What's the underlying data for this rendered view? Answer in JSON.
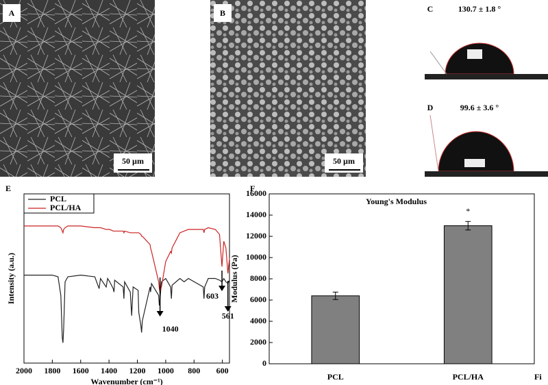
{
  "panels": [
    {
      "label": "A",
      "scale_bar": "50 µm"
    },
    {
      "label": "B",
      "scale_bar": "50 µm"
    },
    {
      "label": "C",
      "contact_angle": "130.7 ± 1.8 °"
    },
    {
      "label": "D",
      "contact_angle": "99.6 ± 3.6 °"
    }
  ],
  "chart_data": [
    {
      "type": "line",
      "panel": "E",
      "xlabel": "Wavenumber (cm⁻¹)",
      "ylabel": "Intensity (a.u.)",
      "x": [
        2000,
        1800,
        1760,
        1740,
        1730,
        1725,
        1720,
        1710,
        1690,
        1600,
        1500,
        1470,
        1460,
        1420,
        1410,
        1395,
        1370,
        1365,
        1360,
        1300,
        1295,
        1290,
        1250,
        1240,
        1230,
        1195,
        1190,
        1175,
        1170,
        1165,
        1110,
        1107,
        1100,
        1050,
        1045,
        1040,
        1030,
        1000,
        965,
        960,
        955,
        900,
        870,
        840,
        735,
        730,
        725,
        700,
        650,
        620,
        603,
        590,
        575,
        561,
        550
      ],
      "series": [
        {
          "name": "PCL",
          "color": "#222222",
          "values": [
            52,
            52,
            51,
            40,
            15,
            12,
            20,
            48,
            51,
            52,
            51,
            44,
            50,
            45,
            50,
            48,
            44,
            42,
            49,
            45,
            38,
            48,
            42,
            28,
            45,
            43,
            30,
            22,
            18,
            25,
            45,
            42,
            47,
            40,
            34,
            38,
            48,
            50,
            45,
            38,
            46,
            50,
            48,
            50,
            45,
            38,
            45,
            50,
            50,
            49,
            48,
            50,
            48,
            47,
            49
          ]
        },
        {
          "name": "PCL/HA",
          "color": "#cc2222",
          "values": [
            81,
            81,
            81,
            80,
            78,
            77,
            79,
            80,
            81,
            81,
            80,
            80,
            80,
            79,
            79,
            79,
            78,
            78,
            78,
            78,
            77,
            78,
            77,
            77,
            77,
            77,
            77,
            76,
            75,
            75,
            70,
            68,
            66,
            48,
            44,
            42,
            45,
            60,
            66,
            65,
            68,
            77,
            78,
            79,
            79,
            77,
            79,
            80,
            79,
            76,
            57,
            72,
            68,
            53,
            62
          ]
        }
      ],
      "annotations": [
        1040,
        603,
        561
      ],
      "xlim": [
        2000,
        550
      ],
      "xticks": [
        2000,
        1800,
        1600,
        1400,
        1200,
        1000,
        800,
        600
      ],
      "ylim": [
        0,
        100
      ],
      "legend": "upper left"
    },
    {
      "type": "bar",
      "panel": "F",
      "title": "Young's Modulus",
      "ylabel": "Modulus (Pa)",
      "categories": [
        "PCL",
        "PCL/HA"
      ],
      "values": [
        6400,
        13000
      ],
      "errors": [
        350,
        400
      ],
      "color": "#808080",
      "annotation": "*",
      "ylim": [
        0,
        16000
      ],
      "yticks": [
        0,
        2000,
        4000,
        6000,
        8000,
        10000,
        12000,
        14000,
        16000
      ]
    }
  ],
  "caption_fragment": "Fi"
}
